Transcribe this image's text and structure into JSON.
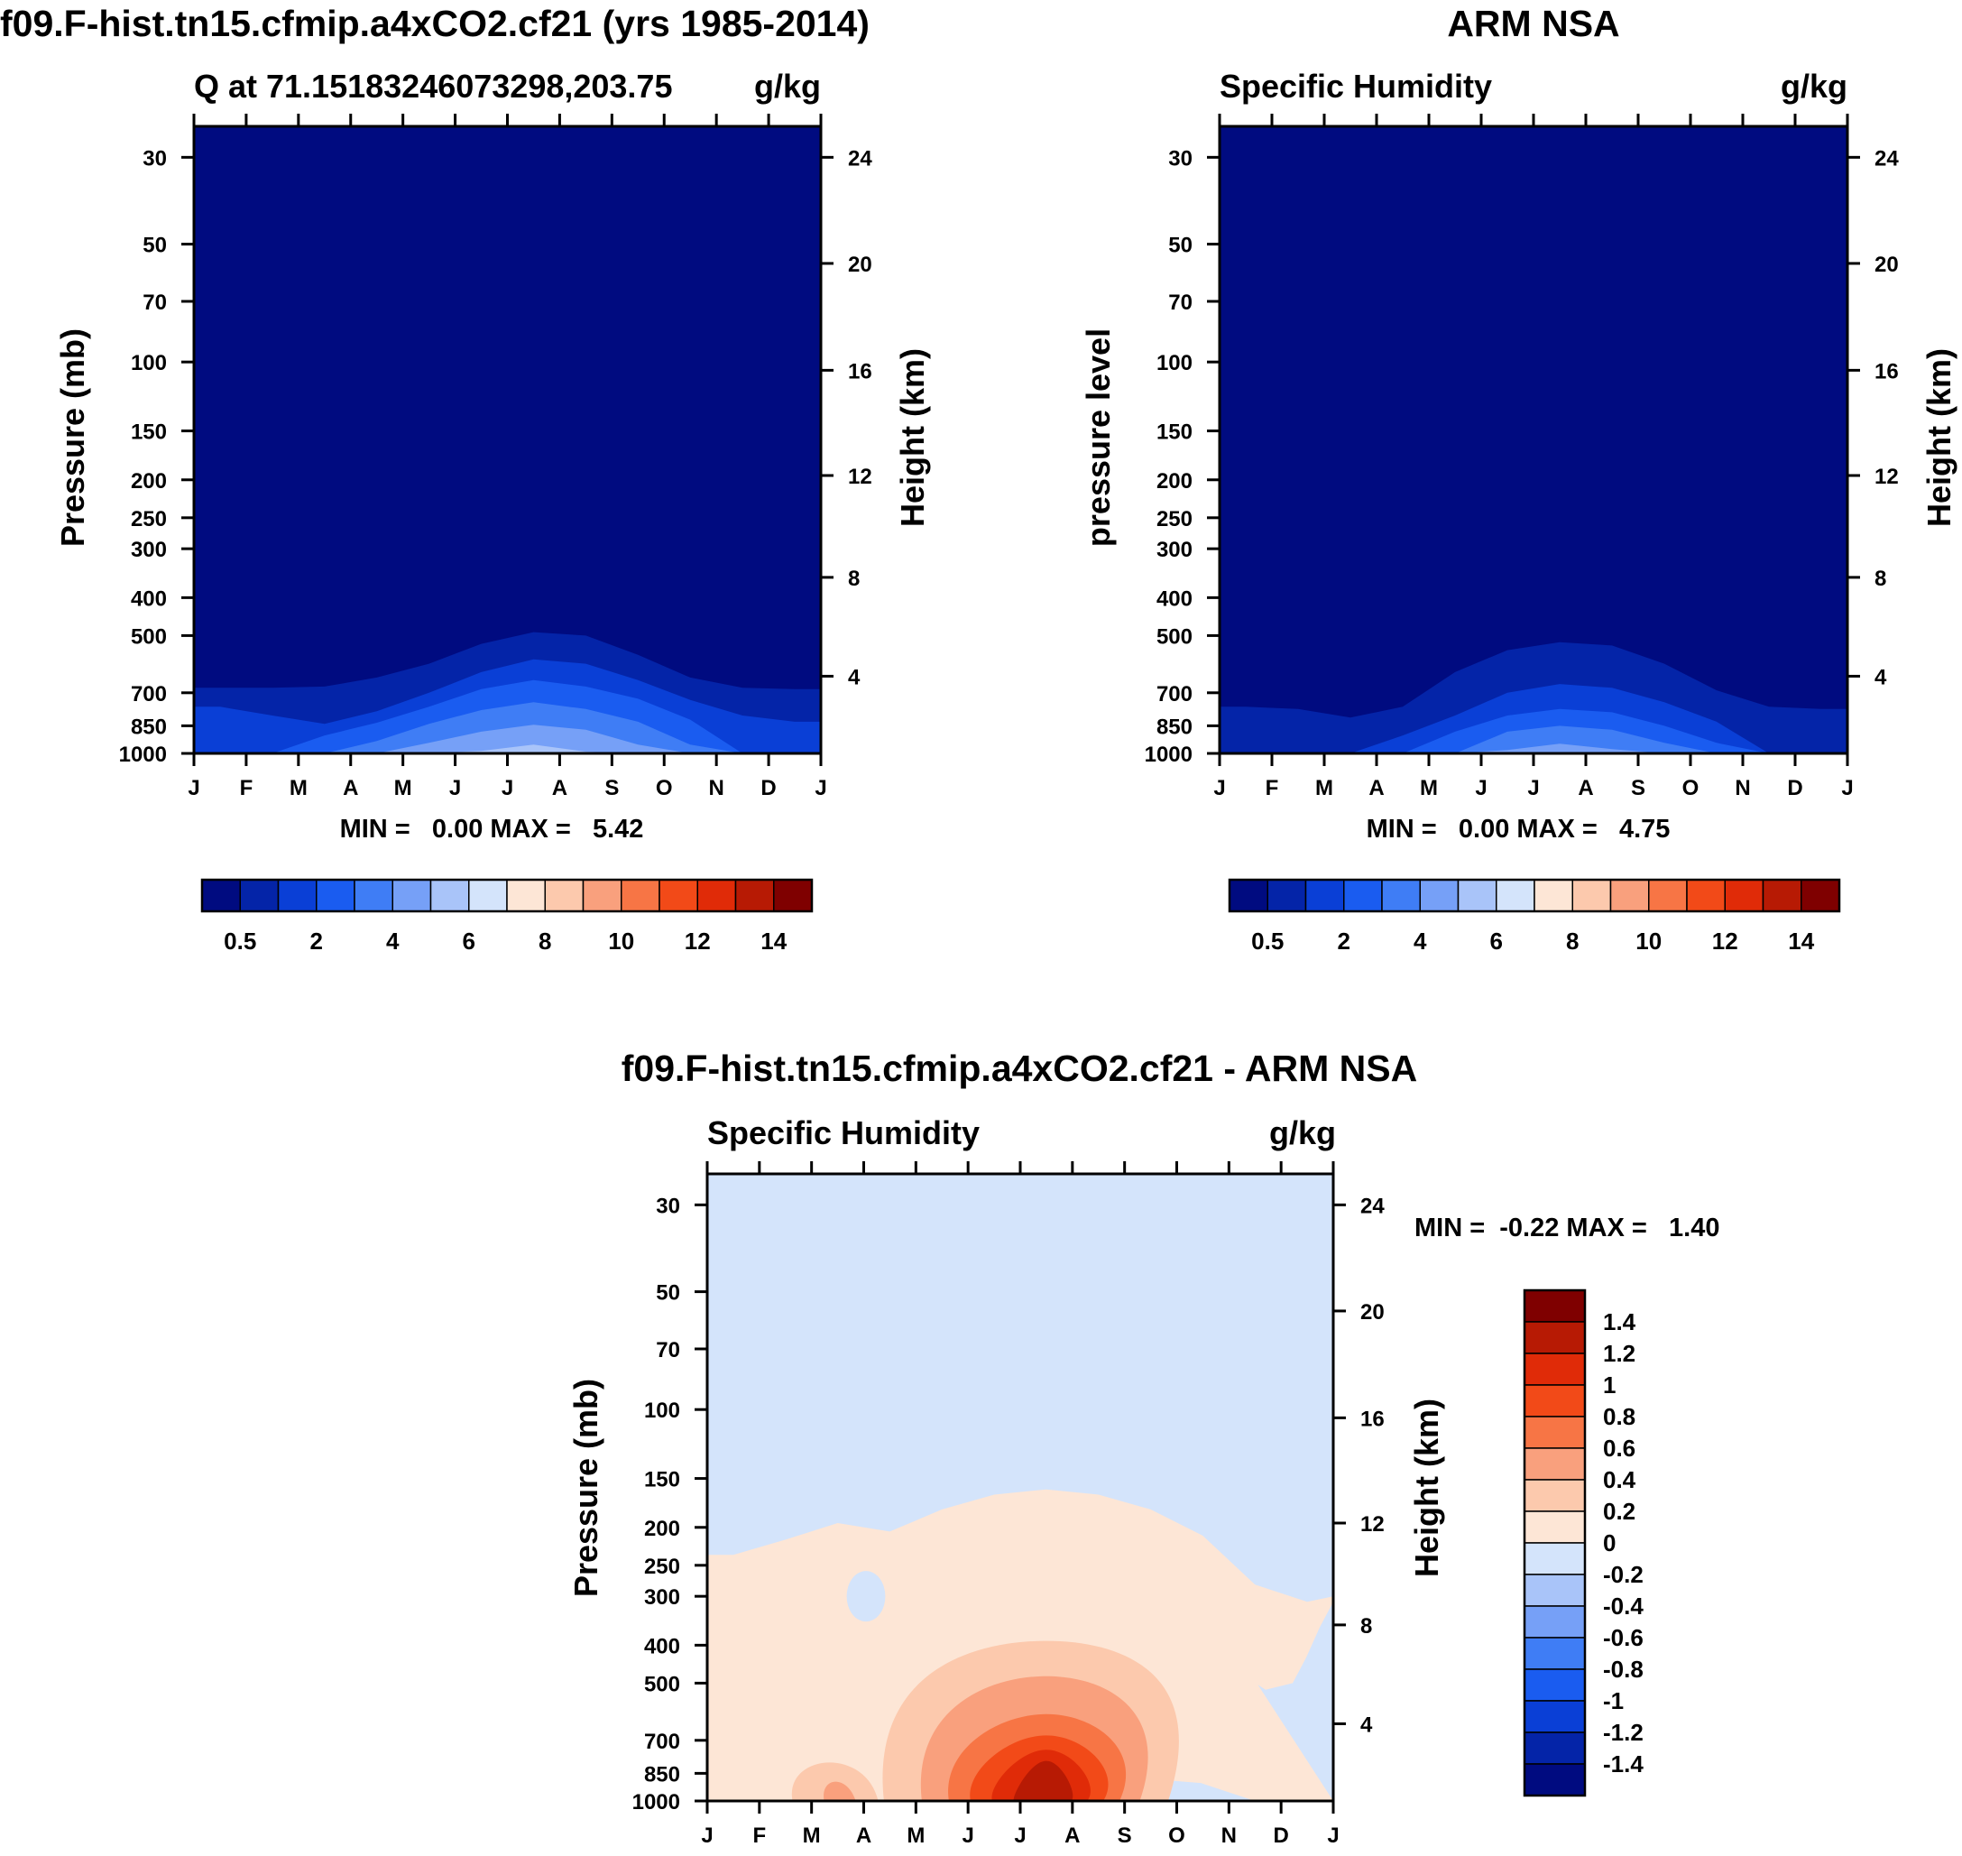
{
  "months": [
    "J",
    "F",
    "M",
    "A",
    "M",
    "J",
    "J",
    "A",
    "S",
    "O",
    "N",
    "D",
    "J"
  ],
  "pressure_ticks": [
    "30",
    "50",
    "70",
    "100",
    "150",
    "200",
    "250",
    "300",
    "400",
    "500",
    "700",
    "850",
    "1000"
  ],
  "height_ticks": [
    "24",
    "20",
    "16",
    "12",
    "8",
    "4"
  ],
  "colors": {
    "abs_palette": [
      "#000b80",
      "#0424a8",
      "#0a3fd6",
      "#1a5cf0",
      "#3f7df5",
      "#76a0f7",
      "#a9c4f9",
      "#d4e4fb",
      "#fde6d6",
      "#fcc9ad",
      "#f9a07d",
      "#f77545",
      "#f24a18",
      "#e02b08",
      "#b71a04",
      "#7f0000"
    ],
    "diff_palette": [
      "#000b80",
      "#0424a8",
      "#0a3fd6",
      "#1a5cf0",
      "#3f7df5",
      "#76a0f7",
      "#a9c4f9",
      "#d4e4fb",
      "#fde6d6",
      "#fcc9ad",
      "#f9a07d",
      "#f77545",
      "#f24a18",
      "#e02b08",
      "#b71a04",
      "#7f0000"
    ]
  },
  "chart_data": [
    {
      "type": "heatmap",
      "title": "f09.F-hist.tn15.cfmip.a4xCO2.cf21 (yrs 1985-2014)",
      "left_subtitle": "Q at 71.15183246073298,203.75",
      "units": "g/kg",
      "ylabel": "Pressure (mb)",
      "ylabel_right": "Height (km)",
      "x": [
        "J",
        "F",
        "M",
        "A",
        "M",
        "J",
        "J",
        "A",
        "S",
        "O",
        "N",
        "D"
      ],
      "ylim": [
        1000,
        25
      ],
      "stats": "MIN =   0.00 MAX =   5.42",
      "min": 0.0,
      "max": 5.42,
      "contour_levels": [
        0.5,
        1,
        2,
        3,
        4,
        5
      ],
      "level_tops_mb": [
        [
          680,
          680,
          675,
          640,
          590,
          525,
          490,
          500,
          560,
          640,
          680,
          685
        ],
        [
          760,
          800,
          840,
          780,
          700,
          620,
          575,
          590,
          650,
          730,
          800,
          830
        ],
        [
          1000,
          1000,
          900,
          835,
          760,
          685,
          650,
          675,
          725,
          820,
          1000,
          1000
        ],
        [
          1000,
          1000,
          1000,
          930,
          840,
          775,
          740,
          770,
          830,
          950,
          1000,
          1000
        ],
        [
          1000,
          1000,
          1000,
          1000,
          940,
          880,
          845,
          870,
          950,
          1000,
          1000,
          1000
        ],
        [
          1000,
          1000,
          1000,
          1000,
          1000,
          985,
          950,
          990,
          1000,
          1000,
          1000,
          1000
        ]
      ],
      "colorbar_labels": [
        "0.5",
        "2",
        "4",
        "6",
        "8",
        "10",
        "12",
        "14"
      ]
    },
    {
      "type": "heatmap",
      "title": "ARM NSA",
      "left_subtitle": "Specific Humidity",
      "units": "g/kg",
      "ylabel": "pressure level",
      "ylabel_right": "Height (km)",
      "x": [
        "J",
        "F",
        "M",
        "A",
        "M",
        "J",
        "J",
        "A",
        "S",
        "O",
        "N",
        "D"
      ],
      "ylim": [
        1000,
        25
      ],
      "stats": "MIN =   0.00 MAX =   4.75",
      "min": 0.0,
      "max": 4.75,
      "contour_levels": [
        0.5,
        1,
        2,
        3,
        4
      ],
      "level_tops_mb": [
        [
          760,
          770,
          810,
          760,
          620,
          545,
          520,
          530,
          590,
          690,
          760,
          770
        ],
        [
          1000,
          1000,
          1000,
          900,
          800,
          700,
          665,
          680,
          740,
          830,
          1000,
          1000
        ],
        [
          1000,
          1000,
          1000,
          1000,
          880,
          800,
          770,
          785,
          850,
          940,
          1000,
          1000
        ],
        [
          1000,
          1000,
          1000,
          1000,
          1000,
          880,
          850,
          870,
          940,
          1000,
          1000,
          1000
        ],
        [
          1000,
          1000,
          1000,
          1000,
          1000,
          980,
          945,
          975,
          1000,
          1000,
          1000,
          1000
        ]
      ],
      "colorbar_labels": [
        "0.5",
        "2",
        "4",
        "6",
        "8",
        "10",
        "12",
        "14"
      ]
    },
    {
      "type": "heatmap",
      "title": "f09.F-hist.tn15.cfmip.a4xCO2.cf21 - ARM NSA",
      "left_subtitle": "Specific Humidity",
      "units": "g/kg",
      "ylabel": "Pressure (mb)",
      "ylabel_right": "Height (km)",
      "x": [
        "J",
        "F",
        "M",
        "A",
        "M",
        "J",
        "J",
        "A",
        "S",
        "O",
        "N",
        "D"
      ],
      "ylim": [
        1000,
        25
      ],
      "stats": "MIN =  -0.22 MAX =   1.40",
      "min": -0.22,
      "max": 1.4,
      "background_level": "-0.2 to 0",
      "positive_region_top_mb": [
        235,
        215,
        195,
        205,
        180,
        165,
        160,
        165,
        180,
        210,
        280,
        310
      ],
      "positive_region_right_bottom_mb": [
        310,
        360,
        430,
        500,
        520
      ],
      "negative_pocket": {
        "month_range": [
          "M",
          "A"
        ],
        "pressure_range_mb": [
          260,
          350
        ]
      },
      "negative_sliver": {
        "month_range": [
          "S",
          "N"
        ],
        "pressure_range_mb": [
          880,
          1000
        ]
      },
      "contour_levels": [
        0.2,
        0.4,
        0.6,
        0.8,
        1.0,
        1.2
      ],
      "colorbar_labels": [
        "1.4",
        "1.2",
        "1",
        "0.8",
        "0.6",
        "0.4",
        "0.2",
        "0",
        "-0.2",
        "-0.4",
        "-0.6",
        "-0.8",
        "-1",
        "-1.2",
        "-1.4"
      ]
    }
  ]
}
